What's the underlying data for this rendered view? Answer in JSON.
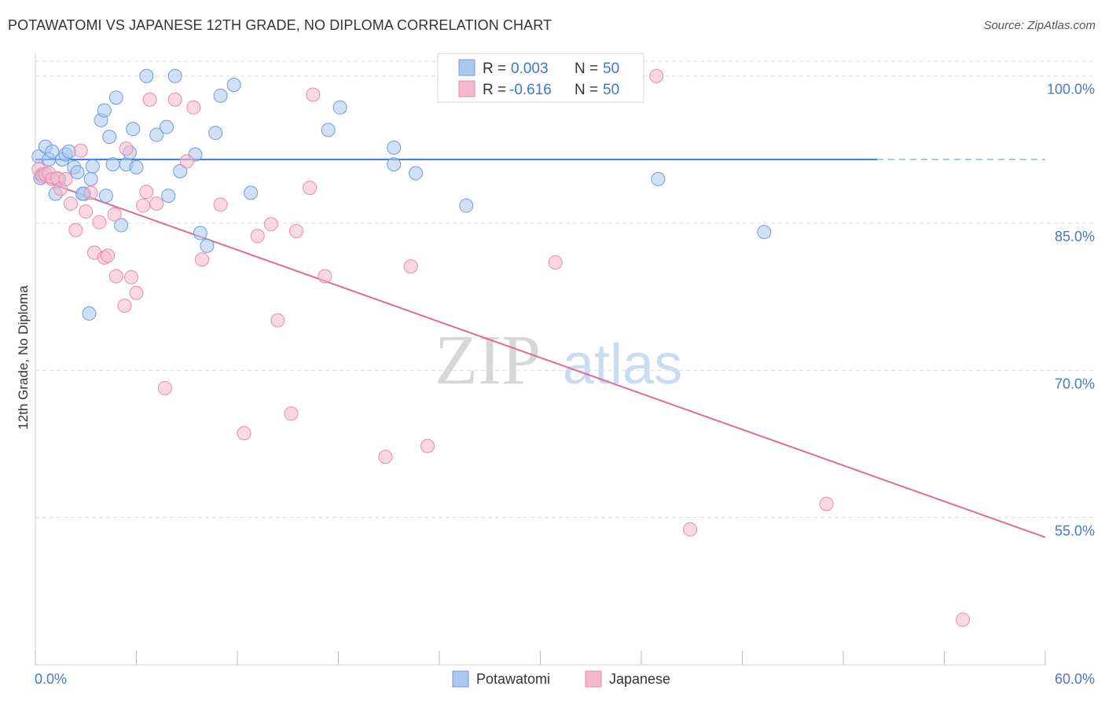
{
  "header": {
    "title": "POTAWATOMI VS JAPANESE 12TH GRADE, NO DIPLOMA CORRELATION CHART",
    "source": "Source: ZipAtlas.com"
  },
  "watermark": {
    "zip": "ZIP",
    "atlas": "atlas"
  },
  "legend": {
    "rows": [
      {
        "r_label": "R =",
        "r_value": "0.003",
        "n_label": "N =",
        "n_value": "50"
      },
      {
        "r_label": "R =",
        "r_value": "-0.616",
        "n_label": "N =",
        "n_value": "50"
      }
    ]
  },
  "colors": {
    "blue_fill": "#aac8f0",
    "blue_stroke": "#6f9bd8",
    "blue_line": "#3a78d4",
    "pink_fill": "#f6b8cc",
    "pink_stroke": "#e98aa9",
    "pink_line": "#e06a96",
    "tick_text": "#4a78c2",
    "grid": "#dddddd"
  },
  "chart_data": {
    "type": "scatter",
    "title": "POTAWATOMI VS JAPANESE 12TH GRADE, NO DIPLOMA CORRELATION CHART",
    "xlabel": "",
    "ylabel": "12th Grade, No Diploma",
    "xlim": [
      0,
      60
    ],
    "ylim": [
      40,
      101.5
    ],
    "x_tick_labels": [
      "0.0%",
      "60.0%"
    ],
    "y_ticks": [
      100,
      85,
      70,
      55
    ],
    "y_tick_labels": [
      "100.0%",
      "85.0%",
      "70.0%",
      "55.0%"
    ],
    "series": [
      {
        "name": "Potawatomi",
        "color": "#6f9bd8",
        "r": 0.003,
        "n": 50,
        "trend": {
          "x": [
            0,
            50
          ],
          "y": [
            91.5,
            91.5
          ],
          "dashed_to_x": 60
        },
        "points": [
          [
            0.2,
            91.8
          ],
          [
            0.3,
            89.6
          ],
          [
            0.4,
            90.0
          ],
          [
            0.6,
            92.8
          ],
          [
            0.8,
            91.5
          ],
          [
            1.0,
            92.3
          ],
          [
            1.2,
            88.0
          ],
          [
            1.4,
            89.5
          ],
          [
            1.6,
            91.5
          ],
          [
            1.8,
            92.0
          ],
          [
            2.0,
            92.3
          ],
          [
            2.3,
            90.7
          ],
          [
            2.5,
            90.2
          ],
          [
            2.9,
            88.0
          ],
          [
            3.3,
            89.5
          ],
          [
            3.4,
            90.8
          ],
          [
            3.9,
            95.5
          ],
          [
            4.1,
            96.5
          ],
          [
            4.4,
            93.8
          ],
          [
            4.6,
            91.0
          ],
          [
            4.8,
            97.8
          ],
          [
            5.1,
            84.8
          ],
          [
            5.4,
            91.0
          ],
          [
            5.6,
            92.2
          ],
          [
            5.8,
            94.6
          ],
          [
            6.0,
            90.7
          ],
          [
            6.6,
            100.0
          ],
          [
            7.2,
            94.0
          ],
          [
            7.8,
            94.8
          ],
          [
            8.3,
            100.0
          ],
          [
            8.6,
            90.3
          ],
          [
            7.9,
            87.8
          ],
          [
            9.5,
            92.0
          ],
          [
            9.8,
            84.0
          ],
          [
            10.2,
            82.7
          ],
          [
            10.7,
            94.2
          ],
          [
            11.0,
            98.0
          ],
          [
            11.8,
            99.1
          ],
          [
            12.8,
            88.1
          ],
          [
            17.4,
            94.5
          ],
          [
            18.1,
            96.8
          ],
          [
            21.3,
            92.7
          ],
          [
            21.3,
            91.0
          ],
          [
            22.6,
            90.1
          ],
          [
            25.6,
            86.8
          ],
          [
            2.8,
            88.0
          ],
          [
            4.2,
            87.8
          ],
          [
            3.2,
            75.8
          ],
          [
            37.0,
            89.5
          ],
          [
            43.3,
            84.1
          ]
        ]
      },
      {
        "name": "Japanese",
        "color": "#e98aa9",
        "r": -0.616,
        "n": 50,
        "trend": {
          "x": [
            0,
            60
          ],
          "y": [
            89.6,
            53.0
          ]
        },
        "points": [
          [
            0.2,
            90.5
          ],
          [
            0.4,
            89.8
          ],
          [
            0.6,
            90.0
          ],
          [
            0.8,
            90.1
          ],
          [
            1.0,
            89.5
          ],
          [
            1.3,
            89.6
          ],
          [
            1.5,
            88.5
          ],
          [
            1.8,
            89.5
          ],
          [
            2.1,
            87.0
          ],
          [
            2.4,
            84.3
          ],
          [
            2.7,
            92.4
          ],
          [
            3.0,
            86.2
          ],
          [
            3.3,
            88.1
          ],
          [
            3.5,
            82.0
          ],
          [
            3.8,
            85.1
          ],
          [
            4.1,
            81.5
          ],
          [
            4.3,
            81.7
          ],
          [
            4.7,
            85.9
          ],
          [
            4.8,
            79.6
          ],
          [
            5.3,
            76.6
          ],
          [
            5.4,
            92.6
          ],
          [
            5.7,
            79.5
          ],
          [
            6.0,
            77.9
          ],
          [
            6.4,
            86.8
          ],
          [
            6.6,
            88.2
          ],
          [
            6.8,
            97.6
          ],
          [
            7.2,
            87.0
          ],
          [
            7.7,
            68.2
          ],
          [
            8.3,
            97.6
          ],
          [
            9.0,
            91.3
          ],
          [
            9.4,
            96.8
          ],
          [
            9.9,
            81.3
          ],
          [
            11.0,
            86.9
          ],
          [
            12.4,
            63.6
          ],
          [
            13.2,
            83.7
          ],
          [
            14.0,
            84.9
          ],
          [
            14.4,
            75.1
          ],
          [
            15.2,
            65.6
          ],
          [
            15.5,
            84.2
          ],
          [
            16.3,
            88.6
          ],
          [
            16.5,
            98.1
          ],
          [
            17.2,
            79.6
          ],
          [
            20.8,
            61.2
          ],
          [
            22.3,
            80.6
          ],
          [
            23.3,
            62.3
          ],
          [
            30.9,
            81.0
          ],
          [
            36.9,
            100.0
          ],
          [
            38.9,
            53.8
          ],
          [
            47.0,
            56.4
          ],
          [
            55.1,
            44.6
          ]
        ]
      }
    ]
  },
  "bottom_legend": {
    "items": [
      "Potawatomi",
      "Japanese"
    ]
  }
}
